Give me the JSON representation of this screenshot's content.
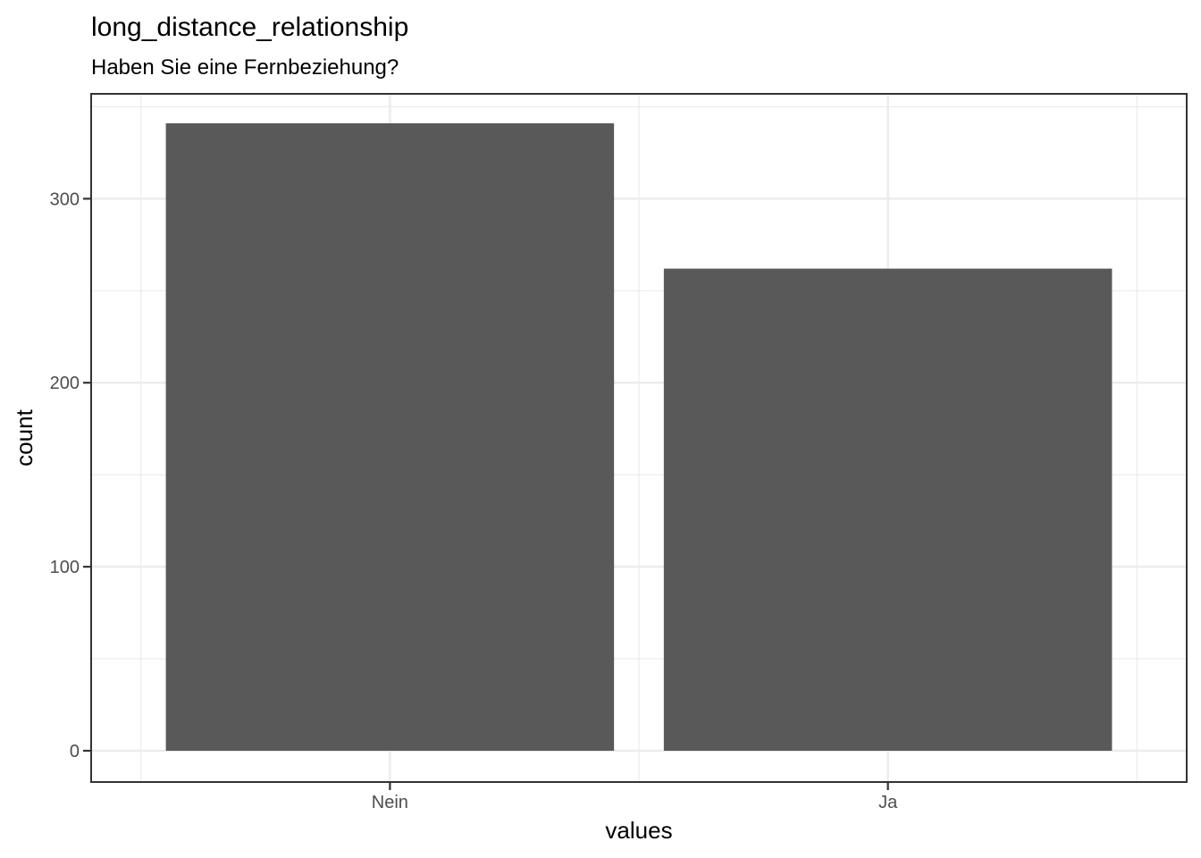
{
  "chart_data": {
    "type": "bar",
    "title": "long_distance_relationship",
    "subtitle": "Haben Sie eine Fernbeziehung?",
    "xlabel": "values",
    "ylabel": "count",
    "categories": [
      "Nein",
      "Ja"
    ],
    "values": [
      341,
      262
    ],
    "ylim": [
      -17,
      357
    ],
    "yticks": [
      0,
      100,
      200,
      300
    ],
    "ytick_labels": [
      "0",
      "100",
      "200",
      "300"
    ],
    "grid": true,
    "legend": "none",
    "bar_color": "#595959",
    "panel_border_color": "#333333",
    "grid_color": "#ebebeb"
  }
}
